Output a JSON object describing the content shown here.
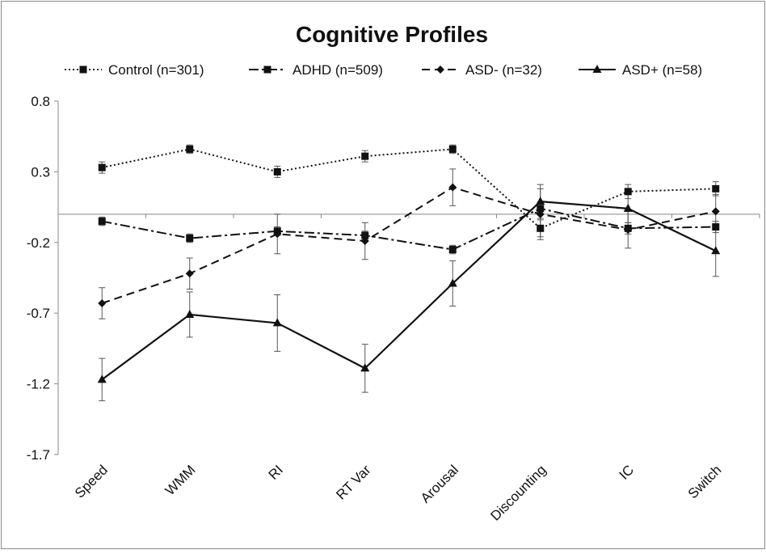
{
  "chart_data": {
    "type": "line",
    "title": "Cognitive Profiles",
    "xlabel": "",
    "ylabel": "",
    "ylim": [
      -1.7,
      0.8
    ],
    "yticks": [
      "0.8",
      "0.3",
      "-0.2",
      "-0.7",
      "-1.2",
      "-1.7"
    ],
    "categories": [
      "Speed",
      "WMM",
      "RI",
      "RT Var",
      "Arousal",
      "Discounting",
      "IC",
      "Switch"
    ],
    "legend_position": "top",
    "grid": false,
    "series": [
      {
        "name": "Control (n=301)",
        "line_style": "dotted",
        "marker": "square",
        "values": [
          0.33,
          0.46,
          0.3,
          0.41,
          0.46,
          -0.1,
          0.16,
          0.18
        ],
        "errors": [
          0.04,
          0.03,
          0.04,
          0.04,
          0.03,
          0.06,
          0.05,
          0.05
        ]
      },
      {
        "name": "ADHD (n=509)",
        "line_style": "dash-dot",
        "marker": "square",
        "values": [
          -0.05,
          -0.17,
          -0.12,
          -0.15,
          -0.25,
          0.04,
          -0.1,
          -0.09
        ],
        "errors": [
          0.03,
          0.03,
          0.03,
          0.03,
          0.03,
          0.04,
          0.04,
          0.04
        ]
      },
      {
        "name": "ASD- (n=32)",
        "line_style": "dashed",
        "marker": "diamond",
        "values": [
          -0.63,
          -0.42,
          -0.14,
          -0.19,
          0.19,
          0.0,
          -0.11,
          0.02
        ],
        "errors": [
          0.11,
          0.11,
          0.14,
          0.13,
          0.13,
          0.18,
          0.13,
          0.12
        ]
      },
      {
        "name": "ASD+ (n=58)",
        "line_style": "solid",
        "marker": "triangle",
        "values": [
          -1.17,
          -0.71,
          -0.77,
          -1.09,
          -0.49,
          0.09,
          0.04,
          -0.26
        ],
        "errors": [
          0.15,
          0.16,
          0.2,
          0.17,
          0.16,
          0.12,
          0.1,
          0.18
        ]
      }
    ]
  }
}
